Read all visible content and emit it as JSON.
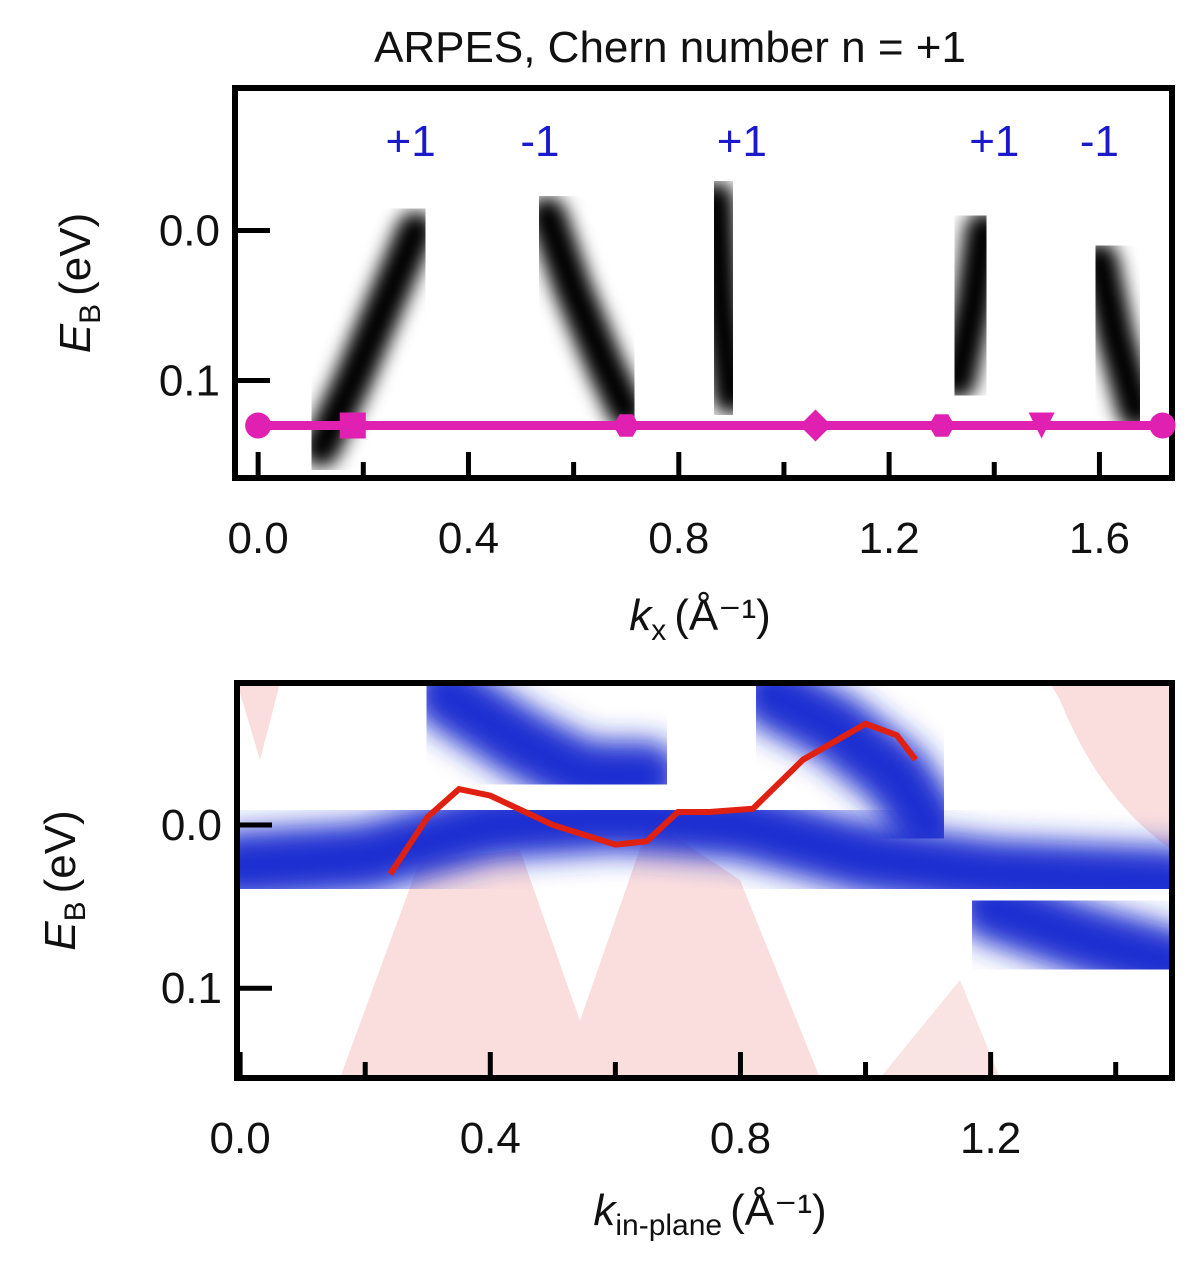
{
  "chart_data": [
    {
      "type": "heatmap",
      "title": "ARPES, Chern number n = +1",
      "xlabel": {
        "symbol": "k",
        "subscript": "x",
        "unit": "(Å⁻¹)"
      },
      "ylabel": {
        "symbol": "E",
        "subscript": "B",
        "unit": "(eV)"
      },
      "xlim": [
        -0.044,
        1.738
      ],
      "ylim": [
        -0.095,
        0.165
      ],
      "y_inverted": true,
      "xticks": [
        {
          "value": 0,
          "label": "0.0"
        },
        0.4,
        0.8,
        1.2,
        1.6
      ],
      "xminorticks": [
        0.2,
        0.6,
        1.0,
        1.4
      ],
      "yticks": [
        {
          "value": 0,
          "label": "0.0"
        },
        0.1
      ],
      "color": "#000000",
      "bands": [
        {
          "x": [
            0.12,
            0.18,
            0.24,
            0.3
          ],
          "y": [
            0.145,
            0.1,
            0.05,
            0.0
          ]
        },
        {
          "x": [
            0.55,
            0.6,
            0.66,
            0.7
          ],
          "y": [
            -0.01,
            0.04,
            0.09,
            0.12
          ]
        },
        {
          "x": [
            0.87,
            0.88,
            0.9
          ],
          "y": [
            -0.02,
            0.05,
            0.11
          ]
        },
        {
          "x": [
            1.38,
            1.36,
            1.33
          ],
          "y": [
            0.0,
            0.05,
            0.1
          ]
        },
        {
          "x": [
            1.6,
            1.63,
            1.67
          ],
          "y": [
            0.02,
            0.07,
            0.12
          ]
        }
      ],
      "annotation_color": "#1a1acc",
      "annotations": [
        {
          "text": "+1",
          "x": 0.29
        },
        {
          "text": "-1",
          "x": 0.536
        },
        {
          "text": "+1",
          "x": 0.92
        },
        {
          "text": "+1",
          "x": 1.4
        },
        {
          "text": "-1",
          "x": 1.6
        }
      ],
      "path": {
        "color": "#e020b0",
        "y": 0.13,
        "points": [
          {
            "x": 0,
            "marker": "circle"
          },
          {
            "x": 0.18,
            "marker": "square"
          },
          {
            "x": 0.7,
            "marker": "hexagon"
          },
          {
            "x": 1.06,
            "marker": "diamond"
          },
          {
            "x": 1.3,
            "marker": "hexagon"
          },
          {
            "x": 1.49,
            "marker": "triangle-down"
          },
          {
            "x": 1.72,
            "marker": "circle"
          }
        ]
      }
    },
    {
      "type": "heatmap",
      "xlabel": {
        "symbol": "k",
        "subscript": "in-plane",
        "unit": "(Å⁻¹)"
      },
      "ylabel": {
        "symbol": "E",
        "subscript": "B",
        "unit": "(eV)"
      },
      "xlim": [
        -0.005,
        1.49
      ],
      "ylim": [
        -0.087,
        0.155
      ],
      "y_inverted": true,
      "xticks": [
        {
          "value": 0,
          "label": "0.0"
        },
        0.4,
        0.8,
        1.2
      ],
      "xminorticks": [
        0.2,
        0.6,
        1.0,
        1.4
      ],
      "yticks": [
        {
          "value": 0,
          "label": "0.0"
        },
        0.1
      ],
      "bulk_color": "#1f2fd0",
      "bulk_bands": [
        {
          "x": [
            -0.005,
            0.2,
            0.4,
            0.6,
            0.8,
            1.0,
            1.2,
            1.49
          ],
          "y": [
            0.025,
            0.02,
            0.0,
            -0.005,
            0.0,
            0.02,
            0.03,
            0.035
          ]
        },
        {
          "x": [
            0.33,
            0.45,
            0.55,
            0.65
          ],
          "y": [
            -0.08,
            -0.05,
            -0.03,
            -0.03
          ]
        },
        {
          "x": [
            0.85,
            0.95,
            1.05,
            1.1
          ],
          "y": [
            -0.08,
            -0.06,
            -0.03,
            0.0
          ]
        },
        {
          "x": [
            1.2,
            1.35,
            1.49
          ],
          "y": [
            0.05,
            0.07,
            0.085
          ]
        }
      ],
      "surface_color": "#e02010",
      "surface_state": {
        "x": [
          0.24,
          0.3,
          0.35,
          0.4,
          0.5,
          0.6,
          0.65,
          0.7,
          0.75,
          0.82,
          0.9,
          1.0,
          1.05,
          1.08
        ],
        "y": [
          0.03,
          -0.005,
          -0.022,
          -0.018,
          0.0,
          0.012,
          0.01,
          -0.008,
          -0.008,
          -0.01,
          -0.04,
          -0.062,
          -0.055,
          -0.04
        ]
      }
    }
  ]
}
